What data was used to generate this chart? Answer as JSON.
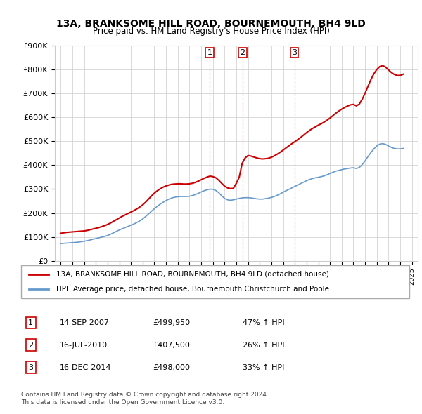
{
  "title": "13A, BRANKSOME HILL ROAD, BOURNEMOUTH, BH4 9LD",
  "subtitle": "Price paid vs. HM Land Registry's House Price Index (HPI)",
  "legend_line1": "13A, BRANKSOME HILL ROAD, BOURNEMOUTH, BH4 9LD (detached house)",
  "legend_line2": "HPI: Average price, detached house, Bournemouth Christchurch and Poole",
  "footer1": "Contains HM Land Registry data © Crown copyright and database right 2024.",
  "footer2": "This data is licensed under the Open Government Licence v3.0.",
  "transactions": [
    {
      "num": "1",
      "date": "14-SEP-2007",
      "price": "£499,950",
      "change": "47% ↑ HPI",
      "x_year": 2007.71
    },
    {
      "num": "2",
      "date": "16-JUL-2010",
      "price": "£407,500",
      "change": "26% ↑ HPI",
      "x_year": 2010.54
    },
    {
      "num": "3",
      "date": "16-DEC-2014",
      "price": "£498,000",
      "change": "33% ↑ HPI",
      "x_year": 2014.96
    }
  ],
  "red_line_color": "#cc0000",
  "blue_line_color": "#6699cc",
  "dashed_line_color": "#cc0000",
  "grid_color": "#cccccc",
  "background_color": "#ffffff",
  "hpi_data": {
    "years": [
      1995.0,
      1995.25,
      1995.5,
      1995.75,
      1996.0,
      1996.25,
      1996.5,
      1996.75,
      1997.0,
      1997.25,
      1997.5,
      1997.75,
      1998.0,
      1998.25,
      1998.5,
      1998.75,
      1999.0,
      1999.25,
      1999.5,
      1999.75,
      2000.0,
      2000.25,
      2000.5,
      2000.75,
      2001.0,
      2001.25,
      2001.5,
      2001.75,
      2002.0,
      2002.25,
      2002.5,
      2002.75,
      2003.0,
      2003.25,
      2003.5,
      2003.75,
      2004.0,
      2004.25,
      2004.5,
      2004.75,
      2005.0,
      2005.25,
      2005.5,
      2005.75,
      2006.0,
      2006.25,
      2006.5,
      2006.75,
      2007.0,
      2007.25,
      2007.5,
      2007.75,
      2008.0,
      2008.25,
      2008.5,
      2008.75,
      2009.0,
      2009.25,
      2009.5,
      2009.75,
      2010.0,
      2010.25,
      2010.5,
      2010.75,
      2011.0,
      2011.25,
      2011.5,
      2011.75,
      2012.0,
      2012.25,
      2012.5,
      2012.75,
      2013.0,
      2013.25,
      2013.5,
      2013.75,
      2014.0,
      2014.25,
      2014.5,
      2014.75,
      2015.0,
      2015.25,
      2015.5,
      2015.75,
      2016.0,
      2016.25,
      2016.5,
      2016.75,
      2017.0,
      2017.25,
      2017.5,
      2017.75,
      2018.0,
      2018.25,
      2018.5,
      2018.75,
      2019.0,
      2019.25,
      2019.5,
      2019.75,
      2020.0,
      2020.25,
      2020.5,
      2020.75,
      2021.0,
      2021.25,
      2021.5,
      2021.75,
      2022.0,
      2022.25,
      2022.5,
      2022.75,
      2023.0,
      2023.25,
      2023.5,
      2023.75,
      2024.0,
      2024.25
    ],
    "values": [
      72000,
      73000,
      74000,
      75000,
      76000,
      77000,
      78000,
      80000,
      82000,
      84000,
      87000,
      90000,
      93000,
      96000,
      99000,
      102000,
      106000,
      111000,
      117000,
      123000,
      129000,
      134000,
      139000,
      144000,
      149000,
      154000,
      160000,
      167000,
      175000,
      185000,
      196000,
      207000,
      218000,
      228000,
      237000,
      245000,
      252000,
      258000,
      263000,
      266000,
      268000,
      269000,
      269000,
      269000,
      270000,
      273000,
      277000,
      282000,
      288000,
      293000,
      297000,
      300000,
      299000,
      294000,
      285000,
      272000,
      261000,
      255000,
      253000,
      255000,
      258000,
      261000,
      263000,
      264000,
      264000,
      263000,
      261000,
      259000,
      258000,
      258000,
      260000,
      262000,
      265000,
      269000,
      274000,
      280000,
      287000,
      293000,
      299000,
      305000,
      311000,
      317000,
      323000,
      329000,
      335000,
      340000,
      344000,
      347000,
      349000,
      352000,
      355000,
      360000,
      365000,
      370000,
      375000,
      378000,
      381000,
      384000,
      386000,
      388000,
      389000,
      386000,
      390000,
      402000,
      418000,
      436000,
      453000,
      468000,
      480000,
      488000,
      490000,
      487000,
      480000,
      474000,
      470000,
      468000,
      468000,
      470000
    ]
  },
  "price_paid_data": {
    "years": [
      1995.0,
      1995.25,
      1995.5,
      1995.75,
      1996.0,
      1996.25,
      1996.5,
      1996.75,
      1997.0,
      1997.25,
      1997.5,
      1997.75,
      1998.0,
      1998.25,
      1998.5,
      1998.75,
      1999.0,
      1999.25,
      1999.5,
      1999.75,
      2000.0,
      2000.25,
      2000.5,
      2000.75,
      2001.0,
      2001.25,
      2001.5,
      2001.75,
      2002.0,
      2002.25,
      2002.5,
      2002.75,
      2003.0,
      2003.25,
      2003.5,
      2003.75,
      2004.0,
      2004.25,
      2004.5,
      2004.75,
      2005.0,
      2005.25,
      2005.5,
      2005.75,
      2006.0,
      2006.25,
      2006.5,
      2006.75,
      2007.0,
      2007.25,
      2007.5,
      2007.75,
      2008.0,
      2008.25,
      2008.5,
      2008.75,
      2009.0,
      2009.25,
      2009.5,
      2009.75,
      2010.0,
      2010.25,
      2010.5,
      2010.75,
      2011.0,
      2011.25,
      2011.5,
      2011.75,
      2012.0,
      2012.25,
      2012.5,
      2012.75,
      2013.0,
      2013.25,
      2013.5,
      2013.75,
      2014.0,
      2014.25,
      2014.5,
      2014.75,
      2015.0,
      2015.25,
      2015.5,
      2015.75,
      2016.0,
      2016.25,
      2016.5,
      2016.75,
      2017.0,
      2017.25,
      2017.5,
      2017.75,
      2018.0,
      2018.25,
      2018.5,
      2018.75,
      2019.0,
      2019.25,
      2019.5,
      2019.75,
      2020.0,
      2020.25,
      2020.5,
      2020.75,
      2021.0,
      2021.25,
      2021.5,
      2021.75,
      2022.0,
      2022.25,
      2022.5,
      2022.75,
      2023.0,
      2023.25,
      2023.5,
      2023.75,
      2024.0,
      2024.25
    ],
    "values": [
      115000,
      117000,
      119000,
      120000,
      121000,
      122000,
      123000,
      124000,
      125000,
      127000,
      130000,
      133000,
      136000,
      139000,
      143000,
      147000,
      152000,
      158000,
      165000,
      172000,
      179000,
      186000,
      192000,
      198000,
      204000,
      210000,
      217000,
      225000,
      234000,
      245000,
      258000,
      271000,
      283000,
      293000,
      301000,
      308000,
      313000,
      317000,
      320000,
      321000,
      322000,
      322000,
      321000,
      321000,
      322000,
      324000,
      328000,
      333000,
      339000,
      345000,
      350000,
      354000,
      352000,
      347000,
      337000,
      324000,
      312000,
      305000,
      302000,
      303000,
      324000,
      350000,
      407500,
      430000,
      440000,
      438000,
      434000,
      430000,
      427000,
      426000,
      427000,
      429000,
      433000,
      439000,
      446000,
      454000,
      463000,
      472000,
      481000,
      490000,
      498000,
      507000,
      516000,
      526000,
      536000,
      545000,
      553000,
      560000,
      567000,
      573000,
      580000,
      588000,
      597000,
      607000,
      617000,
      626000,
      634000,
      641000,
      647000,
      652000,
      654000,
      648000,
      655000,
      675000,
      701000,
      730000,
      758000,
      782000,
      800000,
      812000,
      816000,
      810000,
      798000,
      787000,
      779000,
      775000,
      775000,
      780000
    ]
  },
  "ylim": [
    0,
    900000
  ],
  "xlim": [
    1994.5,
    2025.5
  ],
  "yticks": [
    0,
    100000,
    200000,
    300000,
    400000,
    500000,
    600000,
    700000,
    800000,
    900000
  ],
  "xticks": [
    1995,
    1996,
    1997,
    1998,
    1999,
    2000,
    2001,
    2002,
    2003,
    2004,
    2005,
    2006,
    2007,
    2008,
    2009,
    2010,
    2011,
    2012,
    2013,
    2014,
    2015,
    2016,
    2017,
    2018,
    2019,
    2020,
    2021,
    2022,
    2023,
    2024,
    2025
  ]
}
